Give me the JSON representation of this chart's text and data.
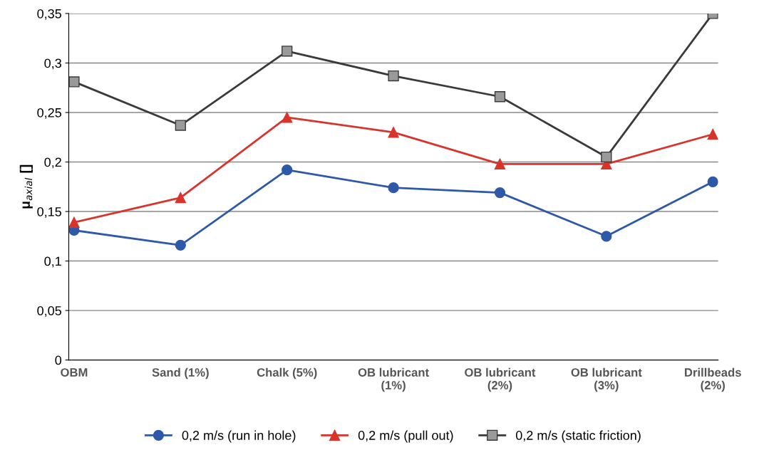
{
  "chart_data": {
    "type": "line",
    "ylabel": "μ$_{axial}$ []",
    "categories": [
      "OBM",
      "Sand (1%)",
      "Chalk (5%)",
      "OB lubricant\n(1%)",
      "OB lubricant\n(2%)",
      "OB lubricant\n(3%)",
      "Drillbeads\n(2%)"
    ],
    "series": [
      {
        "name": "0,2 m/s (run in hole)",
        "color": "#2e59a8",
        "marker": "circle",
        "values": [
          0.131,
          0.116,
          0.192,
          0.174,
          0.169,
          0.125,
          0.18
        ]
      },
      {
        "name": "0,2 m/s (pull out)",
        "color": "#d9342b",
        "marker": "triangle",
        "values": [
          0.139,
          0.164,
          0.245,
          0.23,
          0.198,
          0.198,
          0.228
        ]
      },
      {
        "name": "0,2 m/s (static friction)",
        "color": "#3a3a3a",
        "marker": "square",
        "values": [
          0.281,
          0.237,
          0.312,
          0.287,
          0.266,
          0.205,
          0.35
        ]
      }
    ],
    "ylim": [
      0,
      0.35
    ],
    "yticks": [
      {
        "value": 0,
        "label": "0"
      },
      {
        "value": 0.05,
        "label": "0,05"
      },
      {
        "value": 0.1,
        "label": "0,1"
      },
      {
        "value": 0.15,
        "label": "0,15"
      },
      {
        "value": 0.2,
        "label": "0,2"
      },
      {
        "value": 0.25,
        "label": "0,25"
      },
      {
        "value": 0.3,
        "label": "0,3"
      },
      {
        "value": 0.35,
        "label": "0,35"
      }
    ],
    "grid": "y",
    "legend": "bottom",
    "line_style": "solid"
  }
}
